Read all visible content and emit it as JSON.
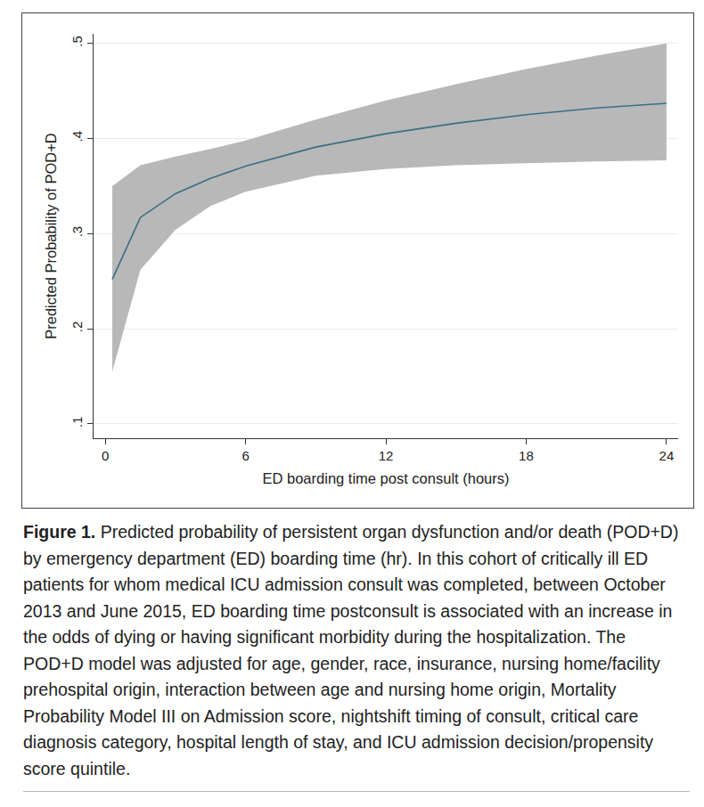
{
  "chart_data": {
    "type": "line",
    "x_label": "ED boarding time post consult (hours)",
    "y_label": "Predicted Probability of POD+D",
    "x": [
      0.3,
      1.5,
      3,
      4.5,
      6,
      9,
      12,
      15,
      18,
      21,
      24
    ],
    "values": [
      0.252,
      0.317,
      0.342,
      0.358,
      0.371,
      0.391,
      0.405,
      0.416,
      0.425,
      0.432,
      0.437
    ],
    "lower": [
      0.155,
      0.262,
      0.304,
      0.329,
      0.344,
      0.361,
      0.368,
      0.372,
      0.374,
      0.376,
      0.377
    ],
    "upper": [
      0.35,
      0.372,
      0.381,
      0.389,
      0.398,
      0.42,
      0.44,
      0.457,
      0.473,
      0.487,
      0.5
    ],
    "color": "#3b6e86",
    "band_color": "#b8b8b8",
    "xlim": [
      -0.5,
      24.5
    ],
    "ylim": [
      0.085,
      0.51
    ],
    "xticks": [
      0,
      6,
      12,
      18,
      24
    ],
    "yticks": [
      {
        "value": 0.1,
        "label": ".1"
      },
      {
        "value": 0.2,
        "label": ".2"
      },
      {
        "value": 0.3,
        "label": ".3"
      },
      {
        "value": 0.4,
        "label": ".4"
      },
      {
        "value": 0.5,
        "label": ".5"
      }
    ],
    "grid": true,
    "caption_label": "Figure 1.",
    "caption": "Predicted probability of persistent organ dysfunction and/or death (POD+D) by emergency department (ED) boarding time (hr). In this cohort of critically ill ED patients for whom medical ICU admission consult was completed, between October 2013 and June 2015, ED boarding time postconsult is associated with an increase in the odds of dying or having significant morbidity during the hospitalization. The POD+D model was adjusted for age, gender, race, insurance, nursing home/facility prehospital origin, interaction between age and nursing home origin, Mortality Probability Model III on Admission score, nightshift timing of consult, critical care diagnosis category, hospital length of stay, and ICU admission decision/propensity score quintile."
  }
}
